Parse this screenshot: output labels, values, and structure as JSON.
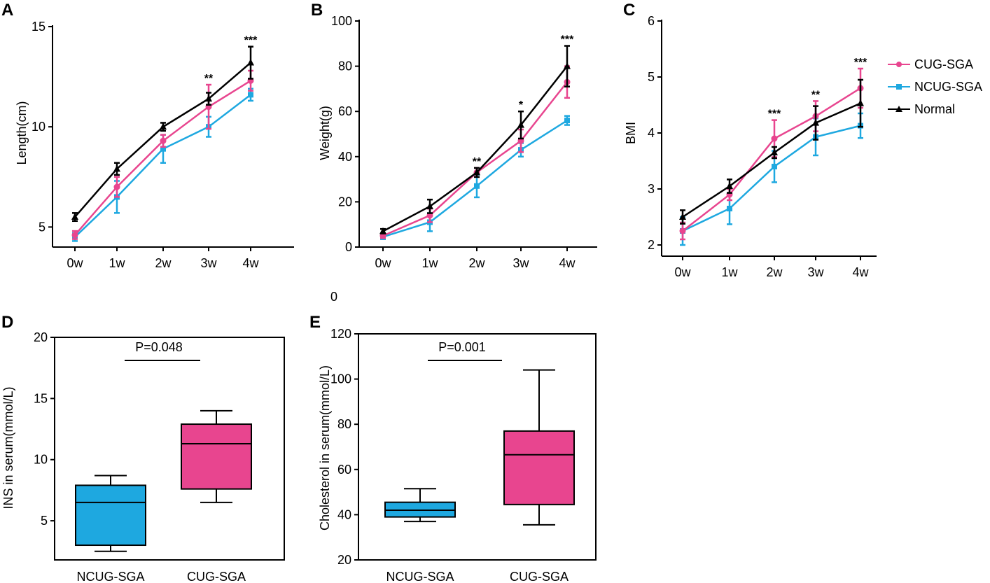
{
  "colors": {
    "cug": "#e8458f",
    "ncug": "#1ea8e0",
    "normal": "#000000"
  },
  "legend": [
    {
      "name": "CUG-SGA",
      "color": "#e8458f",
      "marker": "circle"
    },
    {
      "name": "NCUG-SGA",
      "color": "#1ea8e0",
      "marker": "square"
    },
    {
      "name": "Normal",
      "color": "#000000",
      "marker": "triangle"
    }
  ],
  "stray_label": "0",
  "chart_data": [
    {
      "panel": "A",
      "type": "line",
      "categories": [
        "0w",
        "1w",
        "2w",
        "3w",
        "4w"
      ],
      "ylabel": "Length(cm)",
      "ylim": [
        4,
        15
      ],
      "yticks": [
        5,
        10,
        15
      ],
      "series": [
        {
          "name": "Normal",
          "values": [
            5.5,
            7.9,
            10.0,
            11.4,
            13.2
          ],
          "err": [
            0.2,
            0.3,
            0.2,
            0.3,
            0.8
          ]
        },
        {
          "name": "CUG-SGA",
          "values": [
            4.6,
            7.0,
            9.3,
            11.0,
            12.3
          ],
          "err": [
            0.2,
            0.5,
            0.3,
            1.1,
            0.5
          ]
        },
        {
          "name": "NCUG-SGA",
          "values": [
            4.5,
            6.5,
            8.9,
            10.0,
            11.6
          ],
          "err": [
            0.2,
            0.8,
            0.7,
            0.5,
            0.3
          ]
        }
      ],
      "significance": [
        "",
        "",
        "",
        "**",
        "***"
      ]
    },
    {
      "panel": "B",
      "type": "line",
      "categories": [
        "0w",
        "1w",
        "2w",
        "3w",
        "4w"
      ],
      "ylabel": "Weight(g)",
      "ylim": [
        0,
        100
      ],
      "yticks": [
        0,
        20,
        40,
        60,
        80,
        100
      ],
      "series": [
        {
          "name": "Normal",
          "values": [
            7,
            18,
            33,
            54,
            80
          ],
          "err": [
            1,
            3,
            2,
            6,
            9
          ]
        },
        {
          "name": "CUG-SGA",
          "values": [
            5,
            14,
            33,
            47,
            73
          ],
          "err": [
            1,
            3,
            2,
            5,
            7
          ]
        },
        {
          "name": "NCUG-SGA",
          "values": [
            4.5,
            11,
            27,
            43,
            56
          ],
          "err": [
            1,
            4,
            5,
            3,
            2
          ]
        }
      ],
      "significance": [
        "",
        "",
        "**",
        "*",
        "***"
      ]
    },
    {
      "panel": "C",
      "type": "line",
      "categories": [
        "0w",
        "1w",
        "2w",
        "3w",
        "4w"
      ],
      "ylabel": "BMI",
      "ylim": [
        1.8,
        6
      ],
      "yticks": [
        2,
        3,
        4,
        5,
        6
      ],
      "series": [
        {
          "name": "Normal",
          "values": [
            2.5,
            3.05,
            3.65,
            4.18,
            4.53
          ],
          "err": [
            0.12,
            0.12,
            0.1,
            0.3,
            0.42
          ]
        },
        {
          "name": "CUG-SGA",
          "values": [
            2.25,
            2.9,
            3.9,
            4.3,
            4.8
          ],
          "err": [
            0.15,
            0.1,
            0.33,
            0.27,
            0.35
          ]
        },
        {
          "name": "NCUG-SGA",
          "values": [
            2.25,
            2.65,
            3.4,
            3.93,
            4.13
          ],
          "err": [
            0.25,
            0.28,
            0.28,
            0.33,
            0.22
          ]
        }
      ],
      "significance": [
        "",
        "",
        "***",
        "**",
        "***"
      ]
    },
    {
      "panel": "D",
      "type": "box",
      "categories": [
        "NCUG-SGA",
        "CUG-SGA"
      ],
      "ylabel": "INS in serum(mmol/L)",
      "ylim": [
        1.8,
        20
      ],
      "yticks": [
        5,
        10,
        15,
        20
      ],
      "boxes": [
        {
          "name": "NCUG-SGA",
          "min": 2.5,
          "q1": 3.0,
          "median": 6.5,
          "q3": 7.9,
          "max": 8.7,
          "color": "#1ea8e0"
        },
        {
          "name": "CUG-SGA",
          "min": 6.5,
          "q1": 7.6,
          "median": 11.3,
          "q3": 12.9,
          "max": 14.0,
          "color": "#e8458f"
        }
      ],
      "pvalue": "P=0.048"
    },
    {
      "panel": "E",
      "type": "box",
      "categories": [
        "NCUG-SGA",
        "CUG-SGA"
      ],
      "ylabel": "Cholesterol in serum(mmol/L)",
      "ylim": [
        20,
        120
      ],
      "yticks": [
        20,
        40,
        60,
        80,
        100,
        120
      ],
      "boxes": [
        {
          "name": "NCUG-SGA",
          "min": 37,
          "q1": 39,
          "median": 42,
          "q3": 45.5,
          "max": 51.5,
          "color": "#1ea8e0"
        },
        {
          "name": "CUG-SGA",
          "min": 35.5,
          "q1": 44.5,
          "median": 66.5,
          "q3": 77,
          "max": 104,
          "color": "#e8458f"
        }
      ],
      "pvalue": "P=0.001"
    }
  ]
}
